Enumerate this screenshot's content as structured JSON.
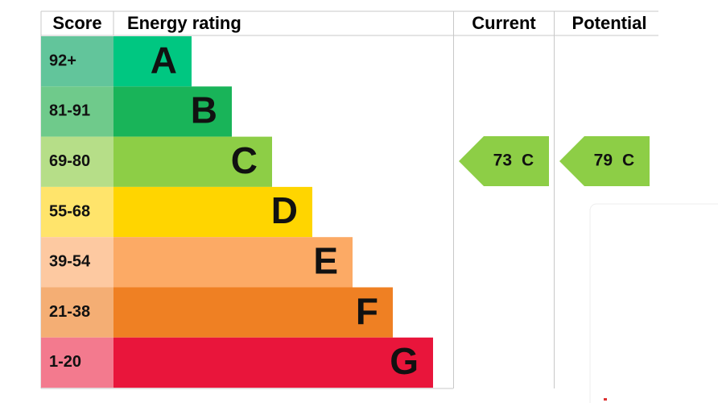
{
  "header": {
    "score": "Score",
    "rating": "Energy rating",
    "current": "Current",
    "potential": "Potential"
  },
  "bands": [
    {
      "score": "92+",
      "letter": "A",
      "color": "#00c781",
      "score_color": "#62c59b"
    },
    {
      "score": "81-91",
      "letter": "B",
      "color": "#19b459",
      "score_color": "#6fca8b"
    },
    {
      "score": "69-80",
      "letter": "C",
      "color": "#8dce46",
      "score_color": "#b6de88"
    },
    {
      "score": "55-68",
      "letter": "D",
      "color": "#ffd500",
      "score_color": "#ffe46b"
    },
    {
      "score": "39-54",
      "letter": "E",
      "color": "#fcaa65",
      "score_color": "#fdc9a1"
    },
    {
      "score": "21-38",
      "letter": "F",
      "color": "#ef8023",
      "score_color": "#f4ae74"
    },
    {
      "score": "1-20",
      "letter": "G",
      "color": "#e9153b",
      "score_color": "#f37a8e"
    }
  ],
  "current": {
    "value": 73,
    "letter": "C",
    "color": "#8dce46"
  },
  "potential": {
    "value": 79,
    "letter": "C",
    "color": "#8dce46"
  }
}
